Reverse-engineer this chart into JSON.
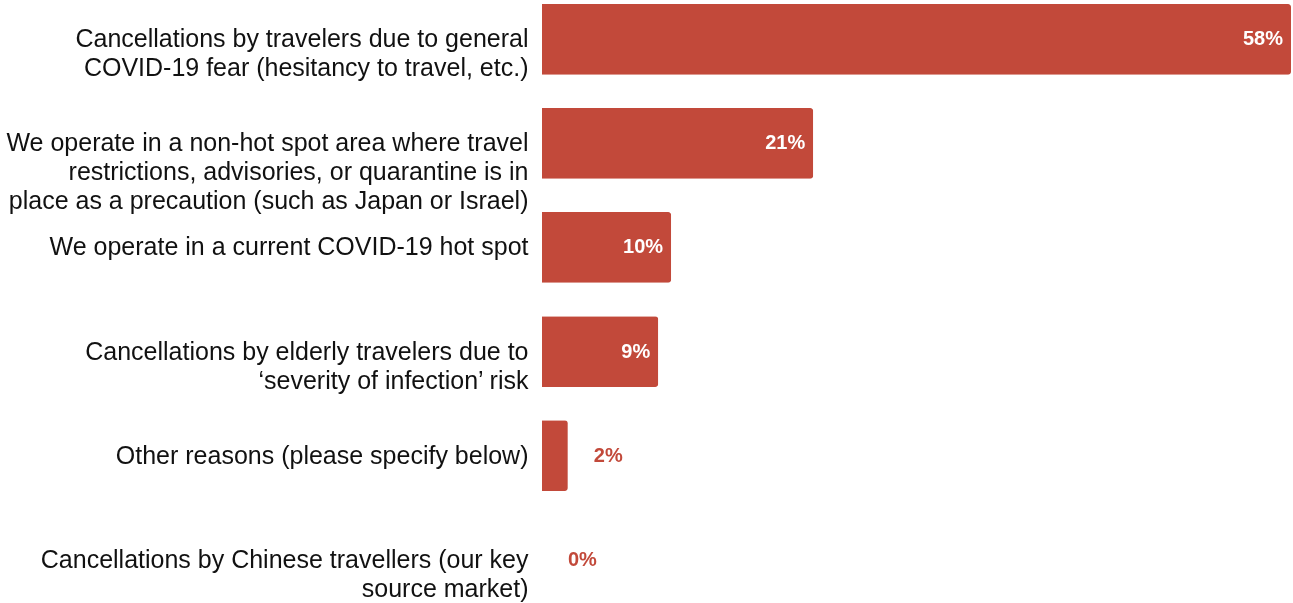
{
  "chart_data": {
    "type": "bar",
    "orientation": "horizontal",
    "color": "#c2493a",
    "value_labels": [
      "58%",
      "21%",
      "10%",
      "9%",
      "2%",
      "0%"
    ],
    "categories": [
      "Cancellations by travelers due to general COVID-19 fear (hesitancy to travel, etc.)",
      "We operate in a non-hot spot area where travel restrictions, advisories, or quarantine is in place as a precaution (such as Japan or Israel)",
      "We operate in a current COVID-19 hot spot",
      "Cancellations by elderly travelers due to ‘severity of infection’ risk",
      "Other reasons (please specify below)",
      "Cancellations by Chinese travellers (our key source market)"
    ],
    "values": [
      58,
      21,
      10,
      9,
      2,
      0
    ]
  }
}
